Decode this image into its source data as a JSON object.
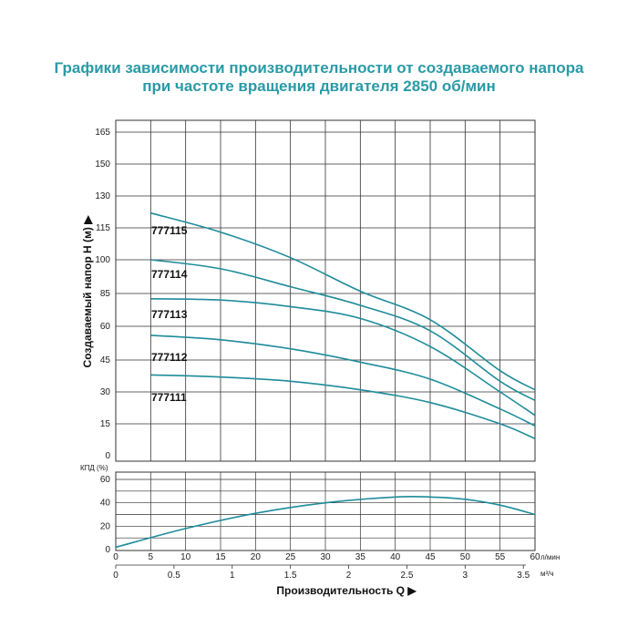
{
  "title_line1": "Графики зависимости производительности от создаваемого напора",
  "title_line2": "при частоте вращения двигателя 2850 об/мин",
  "colors": {
    "curve": "#1e8c9a",
    "grid": "#333333",
    "title": "#2a9aa6"
  },
  "chart_data": [
    {
      "type": "line",
      "ylabel": "Создаваемый напор H (м) ▶",
      "x_unit": "л/мин",
      "x_ticks": [
        0,
        5,
        10,
        15,
        20,
        25,
        30,
        35,
        40,
        45,
        50,
        55,
        60
      ],
      "x_ticks_m3h": [
        "0",
        "0.5",
        "1",
        "1.5",
        "2",
        "2.5",
        "3",
        "3.5"
      ],
      "x2_unit": "м³/ч",
      "xlabel": "Производительность Q ▶",
      "y_ticks": [
        0,
        15,
        30,
        45,
        60,
        85,
        100,
        115,
        130,
        150,
        165
      ],
      "xlim": [
        5,
        60
      ],
      "grid": true,
      "series": [
        {
          "name": "777115",
          "x": [
            5,
            15,
            25,
            35,
            45,
            55,
            60
          ],
          "y": [
            122,
            113,
            101,
            86,
            65,
            40,
            31
          ]
        },
        {
          "name": "777114",
          "x": [
            5,
            15,
            25,
            35,
            45,
            55,
            60
          ],
          "y": [
            100,
            96,
            88,
            76,
            58,
            35,
            26
          ]
        },
        {
          "name": "777113",
          "x": [
            5,
            15,
            25,
            35,
            45,
            55,
            60
          ],
          "y": [
            81,
            80,
            75,
            66,
            51,
            30,
            19
          ]
        },
        {
          "name": "777112",
          "x": [
            5,
            15,
            25,
            35,
            45,
            55,
            60
          ],
          "y": [
            56,
            54,
            50,
            44,
            36,
            22,
            14
          ]
        },
        {
          "name": "777111",
          "x": [
            5,
            15,
            25,
            35,
            45,
            55,
            60
          ],
          "y": [
            38,
            37,
            35,
            31,
            25,
            15,
            8
          ]
        }
      ]
    },
    {
      "type": "line",
      "ylabel": "КПД (%)",
      "y_ticks": [
        0,
        20,
        40,
        60
      ],
      "x_ticks": [
        0,
        5,
        10,
        15,
        20,
        25,
        30,
        35,
        40,
        45,
        50,
        55,
        60
      ],
      "x_unit": "л/мин",
      "grid": true,
      "series": [
        {
          "x": [
            0,
            10,
            20,
            30,
            40,
            45,
            50,
            55,
            60
          ],
          "y": [
            2,
            18,
            31,
            40,
            45,
            45,
            43,
            38,
            30
          ]
        }
      ]
    }
  ]
}
